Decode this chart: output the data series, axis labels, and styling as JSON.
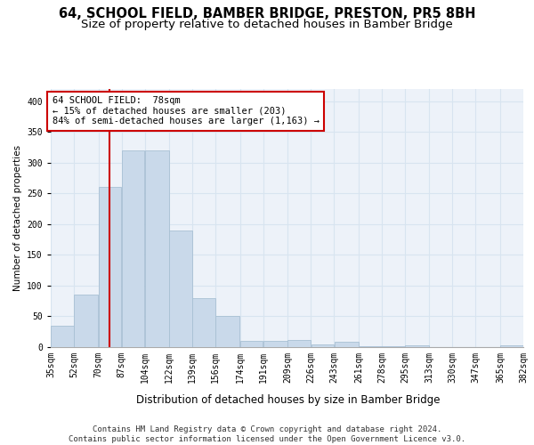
{
  "title": "64, SCHOOL FIELD, BAMBER BRIDGE, PRESTON, PR5 8BH",
  "subtitle": "Size of property relative to detached houses in Bamber Bridge",
  "xlabel": "Distribution of detached houses by size in Bamber Bridge",
  "ylabel": "Number of detached properties",
  "bar_edges": [
    35,
    52,
    70,
    87,
    104,
    122,
    139,
    156,
    174,
    191,
    209,
    226,
    243,
    261,
    278,
    295,
    313,
    330,
    347,
    365,
    382
  ],
  "bar_heights": [
    35,
    85,
    260,
    320,
    320,
    190,
    80,
    50,
    10,
    10,
    12,
    5,
    8,
    1,
    1,
    3,
    0,
    0,
    0,
    3
  ],
  "bar_color": "#c9d9ea",
  "bar_edge_color": "#a8c0d4",
  "grid_color": "#d8e4f0",
  "background_color": "#edf2f9",
  "property_line_x": 78,
  "property_line_color": "#cc0000",
  "annotation_text": "64 SCHOOL FIELD:  78sqm\n← 15% of detached houses are smaller (203)\n84% of semi-detached houses are larger (1,163) →",
  "annotation_box_color": "#cc0000",
  "ylim": [
    0,
    420
  ],
  "xlim": [
    35,
    382
  ],
  "yticks": [
    0,
    50,
    100,
    150,
    200,
    250,
    300,
    350,
    400
  ],
  "footer_text": "Contains HM Land Registry data © Crown copyright and database right 2024.\nContains public sector information licensed under the Open Government Licence v3.0.",
  "title_fontsize": 10.5,
  "subtitle_fontsize": 9.5,
  "xlabel_fontsize": 8.5,
  "ylabel_fontsize": 7.5,
  "tick_fontsize": 7,
  "annotation_fontsize": 7.5,
  "footer_fontsize": 6.5
}
